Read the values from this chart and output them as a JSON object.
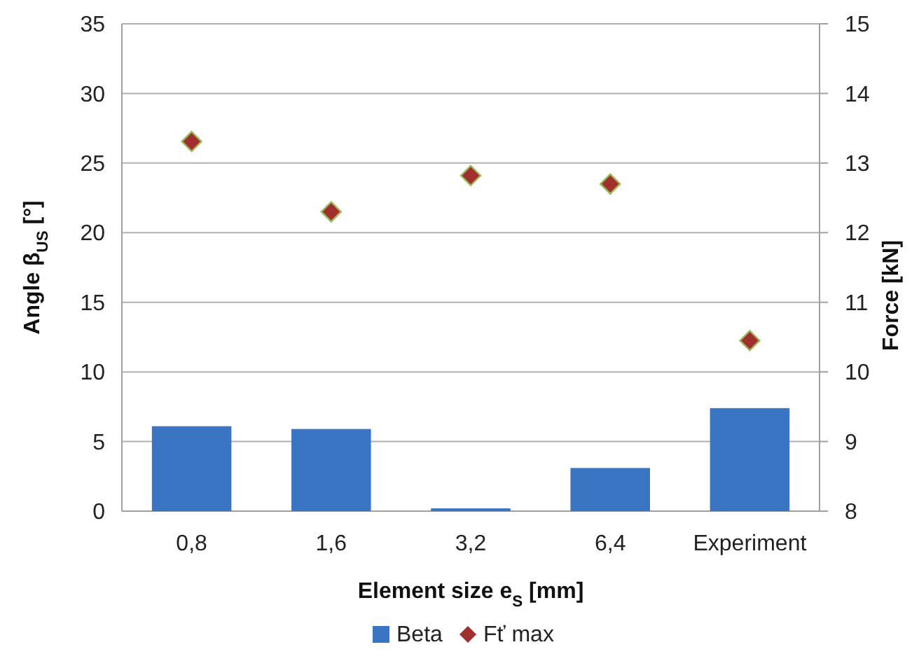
{
  "chart_data": {
    "type": "bar",
    "xlabel": "Element size e$_{S}$  [mm]",
    "ylabel": "Angle β$_{US}$ [°]",
    "y2label": "Force [kN]",
    "categories": [
      "0,8",
      "1,6",
      "3,2",
      "6,4",
      "Experiment"
    ],
    "series": [
      {
        "name": "Beta",
        "color": "#3a75c4",
        "values": [
          6.1,
          5.9,
          0.2,
          3.1,
          7.4
        ]
      },
      {
        "name": "Fť max",
        "type": "scatter",
        "axis": "y2",
        "marker": "diamond",
        "color": "#a0302e",
        "values": [
          13.31,
          12.3,
          12.82,
          12.7,
          10.45
        ]
      }
    ],
    "ylim": [
      0,
      35
    ],
    "yticks": [
      0,
      5,
      10,
      15,
      20,
      25,
      30,
      35
    ],
    "y2lim": [
      8,
      15
    ],
    "y2ticks": [
      8,
      9,
      10,
      11,
      12,
      13,
      14,
      15
    ],
    "grid": "y",
    "legend": "bottom"
  }
}
